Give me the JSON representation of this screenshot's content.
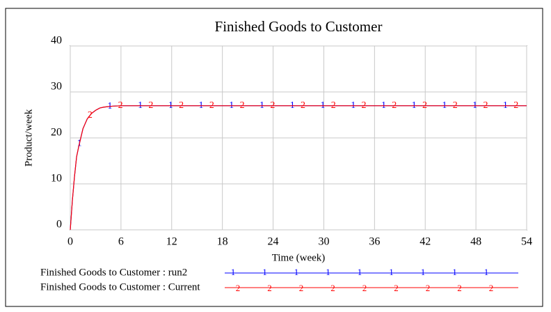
{
  "chart_data": {
    "type": "line",
    "title": "Finished Goods to Customer",
    "x_label": "Time (week)",
    "y_label": "Product/week",
    "x": [
      0,
      0.25,
      0.5,
      0.75,
      1,
      1.5,
      2,
      2.5,
      3,
      3.5,
      4,
      5,
      6,
      12,
      18,
      24,
      30,
      36,
      42,
      48,
      54
    ],
    "series": [
      {
        "name": "Finished Goods to Customer : run2",
        "marker": "1",
        "color": "#0000ff",
        "values": [
          0,
          6.4,
          11.6,
          15.9,
          18.1,
          22.0,
          24.1,
          25.3,
          26.0,
          26.5,
          26.7,
          26.9,
          27,
          27,
          27,
          27,
          27,
          27,
          27,
          27,
          27
        ]
      },
      {
        "name": "Finished Goods to Customer : Current",
        "marker": "2",
        "color": "#ff0000",
        "values": [
          0,
          6.4,
          11.6,
          15.9,
          18.1,
          22.0,
          24.1,
          25.3,
          26.0,
          26.5,
          26.7,
          26.9,
          27,
          27,
          27,
          27,
          27,
          27,
          27,
          27,
          27
        ]
      }
    ],
    "xlim": [
      0,
      54
    ],
    "xticks": [
      0,
      6,
      12,
      18,
      24,
      30,
      36,
      42,
      48,
      54
    ],
    "ylim": [
      0,
      40
    ],
    "yticks": [
      0,
      10,
      20,
      30,
      40
    ],
    "grid": true
  }
}
